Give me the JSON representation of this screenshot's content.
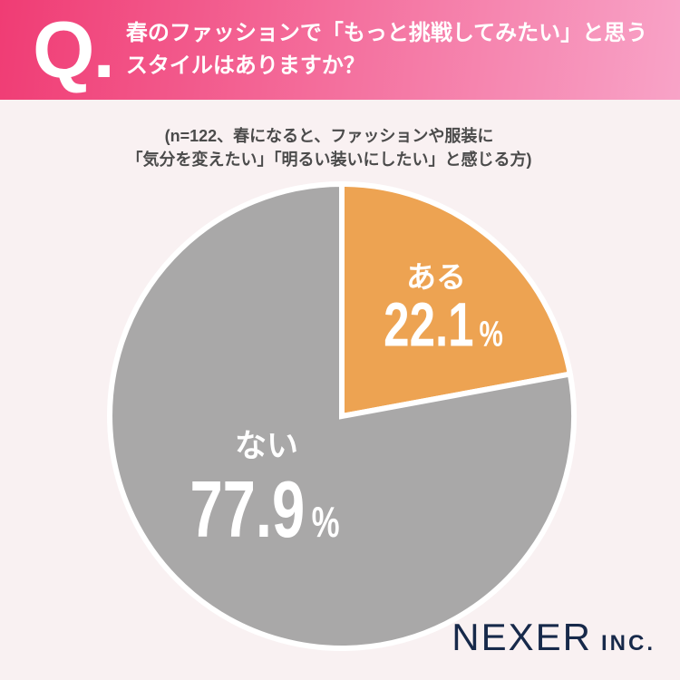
{
  "page": {
    "background": "#F9F1F2"
  },
  "header": {
    "q_label": "Q.",
    "title_line1": "春のファッションで「もっと挑戦してみたい」と思う",
    "title_line2": "スタイルはありますか？",
    "gradient_start": "#F03C74",
    "gradient_end": "#F8A3C7",
    "text_color": "#FFFFFF"
  },
  "note": {
    "line1": "(n=122、春になると、ファッションや服装に",
    "line2": "「気分を変えたい」「明るい装いにしたい」と感じる方)",
    "color": "#4B4B4B"
  },
  "chart_data": {
    "type": "pie",
    "title": "春のファッションで「もっと挑戦してみたい」と思うスタイルはありますか？",
    "note": "(n=122、春になると、ファッションや服装に「気分を変えたい」「明るい装いにしたい」と感じる方)",
    "sample_size": 122,
    "start_angle": "12-oclock",
    "direction": "clockwise",
    "labels_inside": true,
    "separator_color": "#FFFFFF",
    "slices": [
      {
        "key": "aru",
        "label": "ある",
        "value": 22.1,
        "unit": "%",
        "color": "#EDA352"
      },
      {
        "key": "nai",
        "label": "ない",
        "value": 77.9,
        "unit": "%",
        "color": "#A9A8A8"
      }
    ]
  },
  "logo": {
    "name": "NEXER",
    "suffix": "INC.",
    "color": "#17294A"
  }
}
